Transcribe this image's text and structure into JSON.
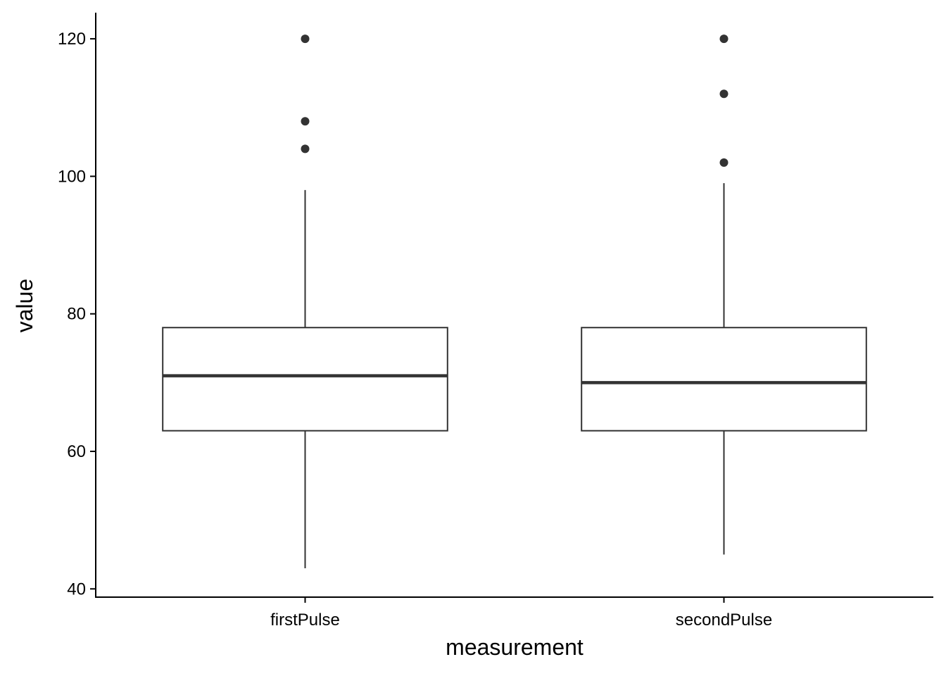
{
  "chart_data": {
    "type": "boxplot",
    "xlabel": "measurement",
    "ylabel": "value",
    "ylim": [
      38.8,
      123.8
    ],
    "yticks": [
      40,
      60,
      80,
      100,
      120
    ],
    "categories": [
      "firstPulse",
      "secondPulse"
    ],
    "boxes": [
      {
        "category": "firstPulse",
        "whisker_low": 43,
        "q1": 63,
        "median": 71,
        "q3": 78,
        "whisker_high": 98,
        "outliers": [
          104,
          108,
          120
        ]
      },
      {
        "category": "secondPulse",
        "whisker_low": 45,
        "q1": 63,
        "median": 70,
        "q3": 78,
        "whisker_high": 99,
        "outliers": [
          102,
          112,
          120
        ]
      }
    ],
    "grid": false,
    "legend": "none",
    "colors": {
      "box_fill": "#ffffff",
      "box_stroke": "#333333",
      "point": "#333333",
      "axis": "#000000"
    }
  }
}
